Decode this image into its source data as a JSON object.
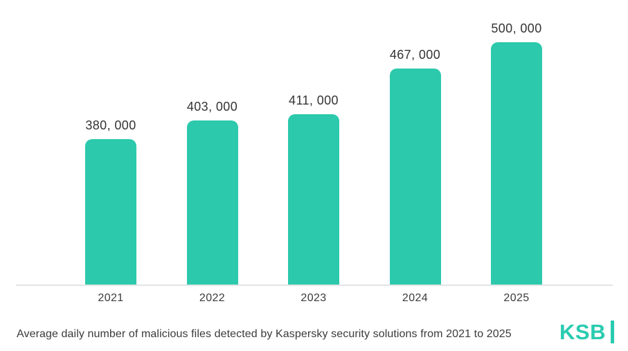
{
  "chart_data": {
    "type": "bar",
    "categories": [
      "2021",
      "2022",
      "2023",
      "2024",
      "2025"
    ],
    "values": [
      380000,
      403000,
      411000,
      467000,
      500000
    ],
    "value_labels": [
      "380, 000",
      "403, 000",
      "411, 000",
      "467, 000",
      "500, 000"
    ],
    "title": "Average daily number of malicious files detected by Kaspersky security solutions from 2021 to 2025",
    "xlabel": "",
    "ylabel": "",
    "ylim": [
      200000,
      500000
    ],
    "grid": false,
    "legend": "none",
    "bar_color": "#2cc9ac",
    "baseline_color": "#e2e4e5",
    "label_color": "#333333"
  },
  "logo": {
    "text": "KSB",
    "color": "#29cbb0"
  }
}
